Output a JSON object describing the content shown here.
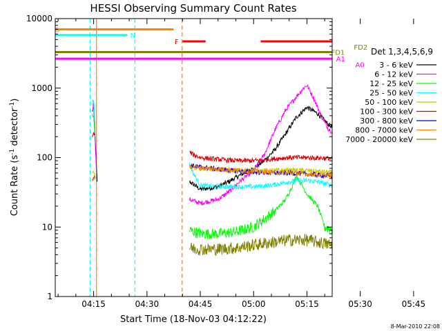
{
  "chart_data": {
    "type": "line",
    "title": "HESSI Observing Summary Count Rates",
    "xlabel": "Start Time (18-Nov-03 04:12:22)",
    "ylabel": "Count Rate (s",
    "ylabel_sup1": "-1",
    "ylabel_mid": " detector",
    "ylabel_sup2": "-1",
    "ylabel_end": ")",
    "ylog": true,
    "ylim": [
      1,
      10000
    ],
    "xlim_minutes": [
      4.2,
      82.1
    ],
    "x_ticks": [
      {
        "label": "04:15",
        "min": 15
      },
      {
        "label": "04:30",
        "min": 30
      },
      {
        "label": "04:45",
        "min": 45
      },
      {
        "label": "05:00",
        "min": 60
      },
      {
        "label": "05:15",
        "min": 75
      },
      {
        "label": "05:30",
        "min": 90
      },
      {
        "label": "05:45",
        "min": 105
      }
    ],
    "y_ticks": [
      {
        "label": "1",
        "v": 1
      },
      {
        "label": "10",
        "v": 10
      },
      {
        "label": "100",
        "v": 100
      },
      {
        "label": "1000",
        "v": 1000
      },
      {
        "label": "10000",
        "v": 10000
      }
    ],
    "legend_title": "Det 1,3,4,5,6,9",
    "footer_date": "8-Mar-2010 22:08",
    "series": [
      {
        "name": "3 - 6 keV",
        "color": "#000000",
        "segments": [
          [
            [
              14.6,
              450
            ],
            [
              15.0,
              560
            ],
            [
              15.4,
              200
            ],
            [
              15.8,
              70
            ],
            [
              16.0,
              45
            ]
          ],
          [
            [
              42.0,
              45
            ],
            [
              45,
              35
            ],
            [
              50,
              38
            ],
            [
              53,
              45
            ],
            [
              56,
              55
            ],
            [
              60,
              70
            ],
            [
              63,
              90
            ],
            [
              66,
              130
            ],
            [
              69,
              220
            ],
            [
              72,
              380
            ],
            [
              75,
              530
            ],
            [
              78,
              430
            ],
            [
              81,
              300
            ],
            [
              84,
              240
            ],
            [
              86,
              220
            ],
            [
              88,
              230
            ],
            [
              89,
              150
            ],
            [
              90,
              60
            ],
            [
              91,
              20
            ],
            [
              92,
              8
            ],
            [
              93,
              3
            ],
            [
              94,
              1.5
            ],
            [
              95,
              1
            ]
          ]
        ]
      },
      {
        "name": "6 - 12 keV",
        "color": "#ff00ff",
        "segments": [
          [
            [
              14.6,
              480
            ],
            [
              15.0,
              600
            ],
            [
              15.4,
              180
            ],
            [
              15.8,
              60
            ]
          ],
          [
            [
              42.0,
              25
            ],
            [
              45,
              22
            ],
            [
              50,
              25
            ],
            [
              53,
              32
            ],
            [
              56,
              45
            ],
            [
              60,
              65
            ],
            [
              63,
              110
            ],
            [
              66,
              250
            ],
            [
              69,
              480
            ],
            [
              72,
              750
            ],
            [
              74,
              1000
            ],
            [
              75,
              1100
            ],
            [
              77,
              700
            ],
            [
              79,
              400
            ],
            [
              81,
              260
            ],
            [
              84,
              200
            ],
            [
              86,
              170
            ],
            [
              88,
              200
            ],
            [
              89,
              2000
            ],
            [
              89.5,
              3000
            ],
            [
              90,
              800
            ],
            [
              91,
              150
            ],
            [
              92,
              70
            ],
            [
              93,
              90
            ],
            [
              93.5,
              2500
            ],
            [
              94,
              3500
            ],
            [
              94.5,
              600
            ],
            [
              95,
              50
            ],
            [
              96,
              45
            ],
            [
              100,
              45
            ],
            [
              105,
              47
            ],
            [
              108,
              50
            ]
          ]
        ]
      },
      {
        "name": "12 - 25 keV",
        "color": "#00ff00",
        "segments": [
          [
            [
              14.6,
              420
            ],
            [
              15.0,
              380
            ],
            [
              15.4,
              200
            ]
          ],
          [
            [
              42.0,
              9
            ],
            [
              45,
              8
            ],
            [
              50,
              8
            ],
            [
              55,
              8.5
            ],
            [
              60,
              10
            ],
            [
              63,
              13
            ],
            [
              66,
              17
            ],
            [
              69,
              25
            ],
            [
              71,
              40
            ],
            [
              72,
              55
            ],
            [
              73,
              45
            ],
            [
              75,
              30
            ],
            [
              78,
              20
            ],
            [
              80,
              10
            ],
            [
              83,
              9
            ],
            [
              86,
              7
            ],
            [
              88,
              15
            ],
            [
              89,
              100
            ],
            [
              90,
              50
            ],
            [
              92,
              20
            ],
            [
              94,
              6
            ],
            [
              96,
              5
            ],
            [
              100,
              5
            ],
            [
              105,
              5
            ],
            [
              108,
              5
            ]
          ]
        ]
      },
      {
        "name": "25 - 50 keV",
        "color": "#00ffff",
        "segments": [
          [
            [
              14.6,
              600
            ],
            [
              15.0,
              700
            ],
            [
              15.4,
              300
            ]
          ],
          [
            [
              42.0,
              80
            ],
            [
              43,
              60
            ],
            [
              45,
              40
            ],
            [
              50,
              38
            ],
            [
              55,
              38
            ],
            [
              60,
              38
            ],
            [
              65,
              40
            ],
            [
              70,
              45
            ],
            [
              75,
              47
            ],
            [
              78,
              45
            ],
            [
              82,
              40
            ],
            [
              85,
              38
            ],
            [
              88,
              36
            ],
            [
              90,
              35
            ],
            [
              95,
              33
            ],
            [
              100,
              32
            ],
            [
              105,
              33
            ],
            [
              108,
              45
            ]
          ]
        ]
      },
      {
        "name": "50 - 100 keV",
        "color": "#c8c800",
        "segments": [
          [
            [
              14.6,
              58
            ],
            [
              15.0,
              60
            ],
            [
              15.4,
              58
            ]
          ],
          [
            [
              42.0,
              72
            ],
            [
              45,
              70
            ],
            [
              50,
              68
            ],
            [
              55,
              66
            ],
            [
              60,
              65
            ],
            [
              65,
              65
            ],
            [
              70,
              66
            ],
            [
              75,
              65
            ],
            [
              80,
              62
            ],
            [
              85,
              60
            ],
            [
              88,
              75
            ],
            [
              90,
              72
            ],
            [
              95,
              65
            ],
            [
              100,
              62
            ],
            [
              105,
              62
            ],
            [
              108,
              80
            ]
          ]
        ]
      },
      {
        "name": "100 - 300 keV",
        "color": "#e00000",
        "segments": [
          [
            [
              14.6,
              210
            ],
            [
              15.0,
              220
            ],
            [
              15.4,
              210
            ]
          ],
          [
            [
              42.0,
              120
            ],
            [
              43,
              110
            ],
            [
              45,
              100
            ],
            [
              50,
              94
            ],
            [
              55,
              90
            ],
            [
              60,
              90
            ],
            [
              65,
              95
            ],
            [
              70,
              100
            ],
            [
              75,
              100
            ],
            [
              80,
              98
            ],
            [
              85,
              95
            ],
            [
              88,
              95
            ],
            [
              90,
              85
            ],
            [
              95,
              80
            ],
            [
              100,
              78
            ],
            [
              105,
              82
            ],
            [
              108,
              100
            ]
          ]
        ]
      },
      {
        "name": "300 - 800 keV",
        "color": "#0000dd",
        "segments": [
          [
            [
              14.6,
              50
            ],
            [
              15.0,
              52
            ],
            [
              15.4,
              50
            ]
          ],
          [
            [
              42.0,
              78
            ],
            [
              45,
              73
            ],
            [
              50,
              68
            ],
            [
              55,
              64
            ],
            [
              60,
              62
            ],
            [
              65,
              60
            ],
            [
              70,
              60
            ],
            [
              75,
              58
            ],
            [
              80,
              55
            ],
            [
              85,
              53
            ],
            [
              88,
              52
            ],
            [
              90,
              50
            ],
            [
              95,
              48
            ],
            [
              100,
              47
            ],
            [
              105,
              47
            ],
            [
              108,
              48
            ]
          ]
        ]
      },
      {
        "name": "800 - 7000 keV",
        "color": "#ff8000",
        "segments": [
          [
            [
              14.6,
              48
            ],
            [
              15.0,
              50
            ],
            [
              15.4,
              48
            ]
          ],
          [
            [
              42.0,
              75
            ],
            [
              45,
              71
            ],
            [
              50,
              68
            ],
            [
              55,
              65
            ],
            [
              60,
              63
            ],
            [
              65,
              62
            ],
            [
              70,
              60
            ],
            [
              75,
              58
            ],
            [
              80,
              56
            ],
            [
              85,
              54
            ],
            [
              88,
              54
            ],
            [
              90,
              52
            ],
            [
              95,
              50
            ],
            [
              100,
              48
            ],
            [
              105,
              47
            ],
            [
              108,
              48
            ]
          ]
        ]
      },
      {
        "name": "7000 - 20000 keV",
        "color": "#808000",
        "segments": [
          [
            [
              42.0,
              5
            ],
            [
              45,
              4.8
            ],
            [
              50,
              4.8
            ],
            [
              55,
              5
            ],
            [
              60,
              5.5
            ],
            [
              65,
              6
            ],
            [
              70,
              6.5
            ],
            [
              75,
              6.5
            ],
            [
              80,
              5.8
            ],
            [
              85,
              5
            ],
            [
              88,
              5
            ],
            [
              90,
              4.5
            ],
            [
              95,
              4.5
            ],
            [
              100,
              4.5
            ],
            [
              105,
              4.5
            ],
            [
              108,
              4.5
            ]
          ]
        ]
      }
    ],
    "flag_bars": [
      {
        "label": "S",
        "color": "#ff8000",
        "v": 7000,
        "x0": 4.2,
        "x1": 37.5,
        "label_x": 4.2
      },
      {
        "label": "N",
        "color": "#00ffff",
        "v": 5800,
        "x0": 4.2,
        "x1": 24.5,
        "label_x": 25.3
      },
      {
        "label": "F",
        "color": "#ff0000",
        "v": 4700,
        "x0": 40.0,
        "x1": 46.5,
        "label_x": 37.8
      },
      {
        "label": "",
        "color": "#ff0000",
        "v": 4700,
        "x0": 62.0,
        "x1": 97.0,
        "label_x": 0
      },
      {
        "label": "",
        "color": "#00ffff",
        "v": 5800,
        "x0": 98.0,
        "x1": 108.5,
        "label_x": 0
      },
      {
        "label": "FD1",
        "color": "#808000",
        "v": 3300,
        "x0": 4.2,
        "x1": 85.5,
        "label_x": 81.8
      },
      {
        "label": "FD2",
        "color": "#808000",
        "v": 3900,
        "x0": 85.5,
        "x1": 108.5,
        "label_x": 88.2
      },
      {
        "label": "A1",
        "color": "#ff00ff",
        "v": 2650,
        "x0": 4.2,
        "x1": 85.0,
        "label_x": 83.2
      },
      {
        "label": "A0",
        "color": "#ff00ff",
        "v": 2200,
        "x0": 85.0,
        "x1": 108.5,
        "label_x": 88.6
      }
    ],
    "vlines": [
      {
        "min": 14.0,
        "color": "#00ffff",
        "dash": true
      },
      {
        "min": 15.8,
        "color": "#ff8000",
        "dash": false
      },
      {
        "min": 26.6,
        "color": "#00ffff",
        "dash": true
      },
      {
        "min": 39.9,
        "color": "#ff8000",
        "dash": true
      },
      {
        "min": 97.4,
        "color": "#00ffff",
        "dash": false
      },
      {
        "min": 111.4,
        "color": "#00ffff",
        "dash": true
      }
    ]
  }
}
